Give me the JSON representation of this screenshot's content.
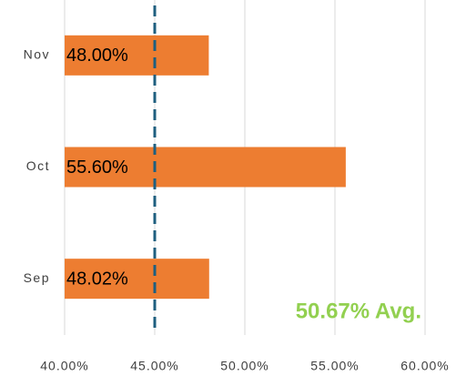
{
  "chart_data": {
    "type": "barh",
    "categories": [
      "Nov",
      "Oct",
      "Sep"
    ],
    "values": [
      48.0,
      55.6,
      48.02
    ],
    "value_labels": [
      "48.00%",
      "55.60%",
      "48.02%"
    ],
    "color": "#ed7d31",
    "xlim": [
      40,
      60
    ],
    "xticks": [
      {
        "value": 40,
        "label": "40.00%"
      },
      {
        "value": 45,
        "label": "45.00%"
      },
      {
        "value": 50,
        "label": "50.00%"
      },
      {
        "value": 55,
        "label": "55.00%"
      },
      {
        "value": 60,
        "label": "60.00%"
      }
    ],
    "grid": true,
    "reference_line": {
      "value": 45,
      "color": "#1f5f7f"
    },
    "annotation": {
      "text": "50.67% Avg.",
      "color": "#92d050"
    }
  }
}
